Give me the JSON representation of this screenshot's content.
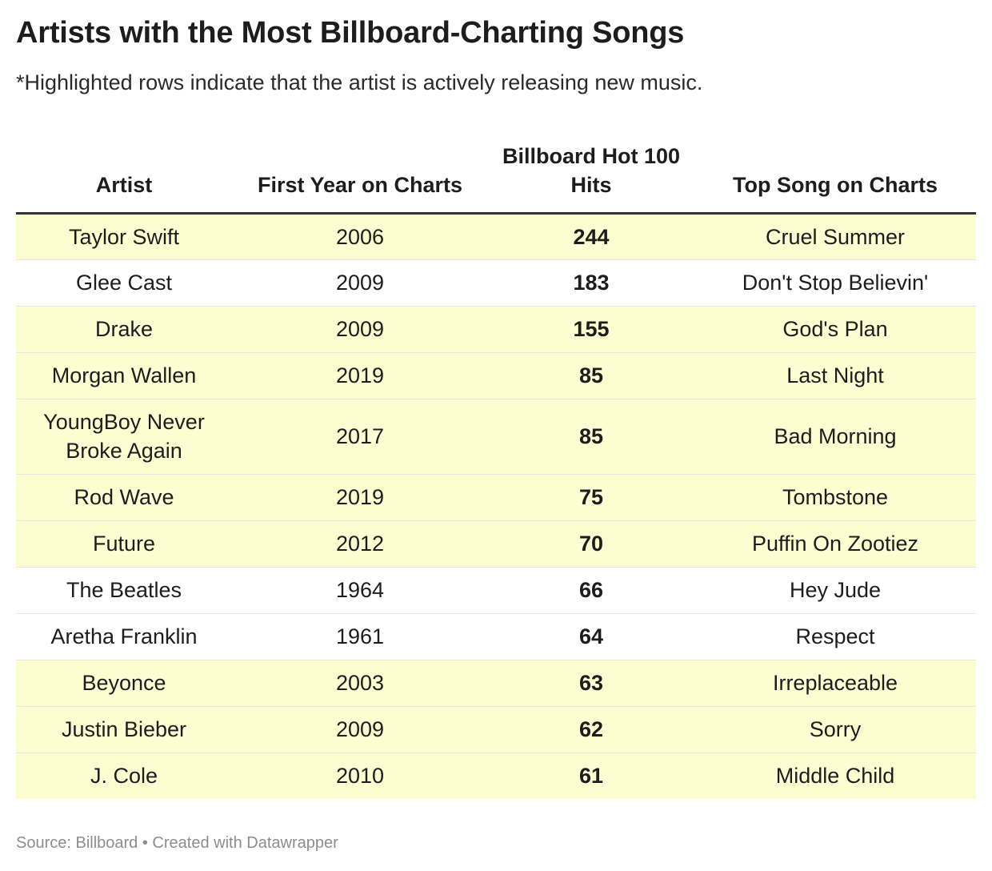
{
  "chart_data": {
    "type": "table",
    "title": "Artists with the Most Billboard-Charting Songs",
    "subtitle": "*Highlighted rows indicate that the artist is actively releasing new music.",
    "columns": [
      "Artist",
      "First Year on Charts",
      "Billboard Hot 100 Hits",
      "Top Song on Charts"
    ],
    "rows": [
      {
        "artist": "Taylor Swift",
        "first_year": "2006",
        "hits": "244",
        "top_song": "Cruel Summer",
        "active": true
      },
      {
        "artist": "Glee Cast",
        "first_year": "2009",
        "hits": "183",
        "top_song": "Don't Stop Believin'",
        "active": false
      },
      {
        "artist": "Drake",
        "first_year": "2009",
        "hits": "155",
        "top_song": "God's Plan",
        "active": true
      },
      {
        "artist": "Morgan Wallen",
        "first_year": "2019",
        "hits": "85",
        "top_song": "Last Night",
        "active": true
      },
      {
        "artist": "YoungBoy Never Broke Again",
        "first_year": "2017",
        "hits": "85",
        "top_song": "Bad Morning",
        "active": true
      },
      {
        "artist": "Rod Wave",
        "first_year": "2019",
        "hits": "75",
        "top_song": "Tombstone",
        "active": true
      },
      {
        "artist": "Future",
        "first_year": "2012",
        "hits": "70",
        "top_song": "Puffin On Zootiez",
        "active": true
      },
      {
        "artist": "The Beatles",
        "first_year": "1964",
        "hits": "66",
        "top_song": "Hey Jude",
        "active": false
      },
      {
        "artist": "Aretha Franklin",
        "first_year": "1961",
        "hits": "64",
        "top_song": "Respect",
        "active": false
      },
      {
        "artist": "Beyonce",
        "first_year": "2003",
        "hits": "63",
        "top_song": "Irreplaceable",
        "active": true
      },
      {
        "artist": "Justin Bieber",
        "first_year": "2009",
        "hits": "62",
        "top_song": "Sorry",
        "active": true
      },
      {
        "artist": "J. Cole",
        "first_year": "2010",
        "hits": "61",
        "top_song": "Middle Child",
        "active": true
      }
    ],
    "source": "Source: Billboard • Created with Datawrapper"
  },
  "colors": {
    "highlight": "#fdfdd2",
    "header_rule": "#333333",
    "source_text": "#8d8d8d"
  }
}
